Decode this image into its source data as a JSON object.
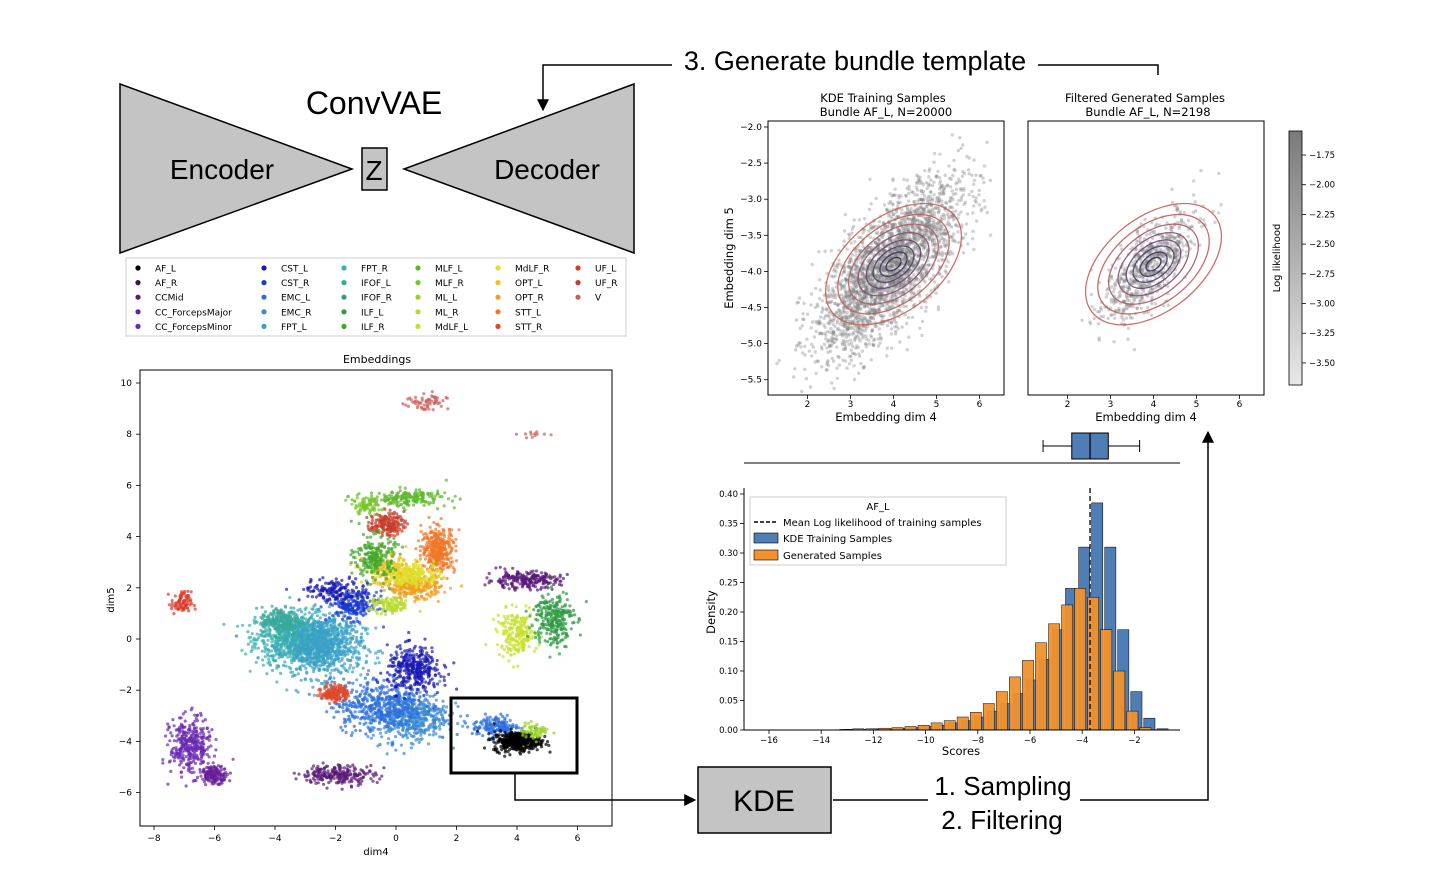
{
  "labels": {
    "step3": "3. Generate bundle template",
    "convvae": "ConvVAE",
    "encoder": "Encoder",
    "z": "Z",
    "decoder": "Decoder",
    "kde": "KDE",
    "step1": "1. Sampling",
    "step2": "2. Filtering"
  },
  "colors": {
    "block_fill": "#c4c4c4",
    "kde_contour": "#c9605a",
    "blue": "#4f7db5",
    "orange": "#f0922e"
  },
  "legend_items": [
    {
      "label": "AF_L",
      "color": "#000000"
    },
    {
      "label": "AF_R",
      "color": "#3a1050"
    },
    {
      "label": "CCMid",
      "color": "#5a1a78"
    },
    {
      "label": "CC_ForcepsMajor",
      "color": "#6a1f9a"
    },
    {
      "label": "CC_ForcepsMinor",
      "color": "#6a2ab0"
    },
    {
      "label": "CST_L",
      "color": "#1a1ab5"
    },
    {
      "label": "CST_R",
      "color": "#1a3ad0"
    },
    {
      "label": "EMC_L",
      "color": "#2a6ee0"
    },
    {
      "label": "EMC_R",
      "color": "#3a8ad0"
    },
    {
      "label": "FPT_L",
      "color": "#3aa0c8"
    },
    {
      "label": "FPT_R",
      "color": "#3ab0b0"
    },
    {
      "label": "IFOF_L",
      "color": "#38a89a"
    },
    {
      "label": "IFOF_R",
      "color": "#30a070"
    },
    {
      "label": "ILF_L",
      "color": "#2a9a40"
    },
    {
      "label": "ILF_R",
      "color": "#40a828"
    },
    {
      "label": "MLF_L",
      "color": "#5cb82a"
    },
    {
      "label": "MLF_R",
      "color": "#78c828"
    },
    {
      "label": "ML_L",
      "color": "#98d428"
    },
    {
      "label": "ML_R",
      "color": "#b4dc28"
    },
    {
      "label": "MdLF_L",
      "color": "#c8e028"
    },
    {
      "label": "MdLF_R",
      "color": "#e0e028"
    },
    {
      "label": "OPT_L",
      "color": "#f0c020"
    },
    {
      "label": "OPT_R",
      "color": "#f0a020"
    },
    {
      "label": "STT_L",
      "color": "#f07828"
    },
    {
      "label": "STT_R",
      "color": "#e04828"
    },
    {
      "label": "UF_L",
      "color": "#d83a28"
    },
    {
      "label": "UF_R",
      "color": "#c83a2a"
    },
    {
      "label": "V",
      "color": "#c8605a"
    }
  ],
  "embeddings_plot": {
    "title": "Embeddings",
    "xlabel": "dim4",
    "ylabel": "dim5",
    "xticks": [
      -8,
      -6,
      -4,
      -2,
      0,
      2,
      4,
      6
    ],
    "yticks": [
      10,
      8,
      6,
      4,
      2,
      0,
      -2,
      -4,
      -6
    ]
  },
  "kde_training_plot": {
    "title_line1": "KDE Training Samples",
    "title_line2": "Bundle AF_L, N=20000",
    "xlabel": "Embedding dim 4",
    "ylabel": "Embedding dim 5",
    "xticks": [
      2,
      3,
      4,
      5,
      6
    ],
    "yticks": [
      -2.0,
      -2.5,
      -3.0,
      -3.5,
      -4.0,
      -4.5,
      -5.0,
      -5.5
    ]
  },
  "filtered_plot": {
    "title_line1": "Filtered Generated Samples",
    "title_line2": "Bundle AF_L, N=2198",
    "xlabel": "Embedding dim 4",
    "xticks": [
      2,
      3,
      4,
      5,
      6
    ]
  },
  "colorbar": {
    "label": "Log likelihood",
    "ticks": [
      -1.75,
      -2.0,
      -2.25,
      -2.5,
      -2.75,
      -3.0,
      -3.25,
      -3.5
    ]
  },
  "chart_data": {
    "type": "bar",
    "xlabel": "Scores",
    "ylabel": "Density",
    "xticks": [
      -16,
      -14,
      -12,
      -10,
      -8,
      -6,
      -4,
      -2
    ],
    "yticks": [
      0.0,
      0.05,
      0.1,
      0.15,
      0.2,
      0.25,
      0.3,
      0.35,
      0.4
    ],
    "xlim": [
      -17.0,
      -0.5
    ],
    "ylim": [
      0,
      0.4
    ],
    "bin_centers": [
      -13.0,
      -12.5,
      -12.0,
      -11.5,
      -11.0,
      -10.5,
      -10.0,
      -9.5,
      -9.0,
      -8.5,
      -8.0,
      -7.5,
      -7.0,
      -6.5,
      -6.0,
      -5.5,
      -5.0,
      -4.5,
      -4.0,
      -3.5,
      -3.0,
      -2.5,
      -2.0,
      -1.5,
      -1.0
    ],
    "legend": {
      "title": "AF_L",
      "mean_line_label": "Mean Log likelihood of training samples"
    },
    "mean_line_x": -3.7,
    "series": [
      {
        "name": "KDE Training Samples",
        "color": "#4f7db5",
        "values": [
          0.001,
          0.001,
          0.002,
          0.002,
          0.003,
          0.004,
          0.006,
          0.008,
          0.012,
          0.016,
          0.022,
          0.032,
          0.045,
          0.062,
          0.085,
          0.12,
          0.17,
          0.24,
          0.31,
          0.385,
          0.31,
          0.17,
          0.065,
          0.02,
          0.002
        ]
      },
      {
        "name": "Generated Samples",
        "color": "#f0922e",
        "values": [
          0.001,
          0.002,
          0.002,
          0.003,
          0.004,
          0.006,
          0.008,
          0.012,
          0.016,
          0.022,
          0.03,
          0.045,
          0.065,
          0.09,
          0.118,
          0.148,
          0.18,
          0.212,
          0.24,
          0.225,
          0.17,
          0.1,
          0.032,
          0.004,
          0.0
        ]
      }
    ],
    "boxplot": {
      "whisker_low": -5.5,
      "q1": -4.4,
      "median": -3.7,
      "q3": -3.0,
      "whisker_high": -1.8
    }
  }
}
